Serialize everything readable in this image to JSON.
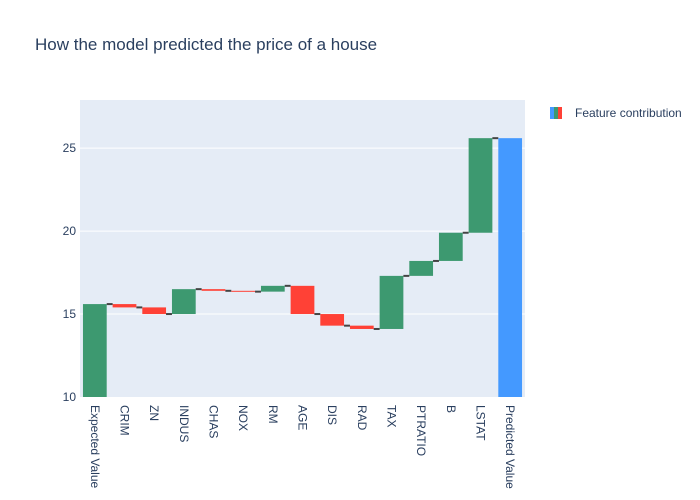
{
  "chart_data": {
    "type": "waterfall",
    "title": "How the model predicted the price of a house",
    "legend": {
      "label": "Feature contribution",
      "placement": "top-right"
    },
    "ylim": [
      10,
      27.9
    ],
    "y_ticks": [
      10,
      15,
      20,
      25
    ],
    "colors": {
      "increasing": "#3d9970",
      "decreasing": "#ff4136",
      "total": "#4499ff",
      "plot_bg": "#e5ecf6",
      "connector": "#444444"
    },
    "categories": [
      "Expected Value",
      "CRIM",
      "ZN",
      "INDUS",
      "CHAS",
      "NOX",
      "RM",
      "AGE",
      "DIS",
      "RAD",
      "TAX",
      "PTRATIO",
      "B",
      "LSTAT",
      "Predicted Value"
    ],
    "steps": [
      {
        "base": 0,
        "end": 15.6,
        "kind": "increasing"
      },
      {
        "base": 15.6,
        "end": 15.4,
        "kind": "decreasing"
      },
      {
        "base": 15.4,
        "end": 15.0,
        "kind": "decreasing"
      },
      {
        "base": 15.0,
        "end": 16.5,
        "kind": "increasing"
      },
      {
        "base": 16.5,
        "end": 16.4,
        "kind": "decreasing"
      },
      {
        "base": 16.4,
        "end": 16.35,
        "kind": "decreasing"
      },
      {
        "base": 16.35,
        "end": 16.7,
        "kind": "increasing"
      },
      {
        "base": 16.7,
        "end": 15.0,
        "kind": "decreasing"
      },
      {
        "base": 15.0,
        "end": 14.3,
        "kind": "decreasing"
      },
      {
        "base": 14.3,
        "end": 14.1,
        "kind": "decreasing"
      },
      {
        "base": 14.1,
        "end": 17.3,
        "kind": "increasing"
      },
      {
        "base": 17.3,
        "end": 18.2,
        "kind": "increasing"
      },
      {
        "base": 18.2,
        "end": 19.9,
        "kind": "increasing"
      },
      {
        "base": 19.9,
        "end": 25.6,
        "kind": "increasing"
      },
      {
        "base": 0,
        "end": 25.6,
        "kind": "total"
      }
    ]
  }
}
